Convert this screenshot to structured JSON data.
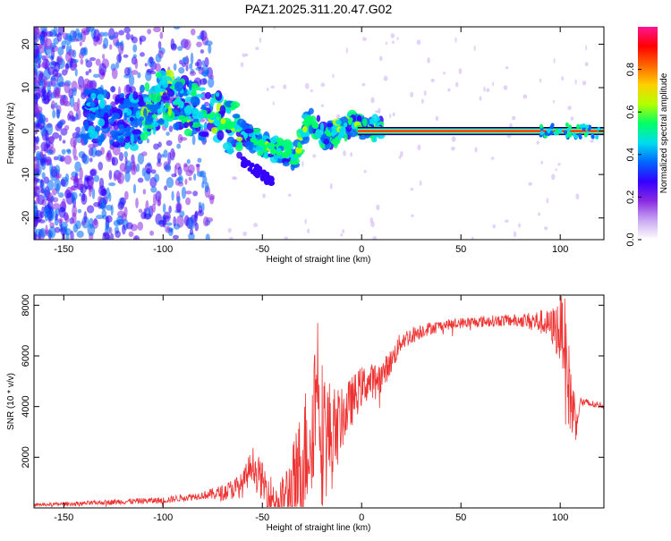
{
  "chart_data": [
    {
      "type": "heatmap",
      "title": "PAZ1.2025.311.20.47.G02",
      "xlabel": "Height of straight line (km)",
      "ylabel": "Frequency (Hz)",
      "xlim": [
        -165,
        122
      ],
      "ylim": [
        -25,
        24
      ],
      "xticks": [
        -150,
        -100,
        -50,
        0,
        50,
        100
      ],
      "yticks": [
        -20,
        -10,
        0,
        10,
        20
      ],
      "colorbar": {
        "label": "Normalized spectral amplitude",
        "range": [
          0,
          1
        ],
        "ticks": [
          "0.0",
          "0.2",
          "0.4",
          "0.6",
          "0.8"
        ],
        "colors": [
          "#ffffff",
          "#c9a8f2",
          "#8a2be2",
          "#3300ff",
          "#0066ff",
          "#00ddee",
          "#00ff66",
          "#b2ff00",
          "#ffd000",
          "#ff6600",
          "#ff0000",
          "#ff1493"
        ]
      },
      "ridge": {
        "x": [
          -165,
          -150,
          -130,
          -115,
          -100,
          -90,
          -80,
          -70,
          -60,
          -50,
          -40,
          -33,
          -28,
          -25,
          -20,
          -15,
          -10,
          -5,
          0,
          10,
          30,
          60,
          90,
          110,
          122
        ],
        "y": [
          3,
          5,
          3,
          2,
          8,
          6,
          4,
          2,
          0,
          -3,
          -5,
          -6,
          1,
          3,
          -1,
          -1,
          0,
          2,
          1,
          0,
          0,
          0,
          0,
          0.5,
          0
        ]
      }
    },
    {
      "type": "line",
      "xlabel": "Height of straight line (km)",
      "ylabel": "SNR (10 * v/v)",
      "xlim": [
        -165,
        122
      ],
      "ylim": [
        0,
        8400
      ],
      "xticks": [
        -150,
        -100,
        -50,
        0,
        50,
        100
      ],
      "yticks": [
        2000,
        4000,
        6000,
        8000
      ],
      "color": "#ee3333",
      "envelope": {
        "x": [
          -165,
          -140,
          -120,
          -100,
          -80,
          -70,
          -60,
          -55,
          -50,
          -45,
          -40,
          -35,
          -30,
          -25,
          -22,
          -20,
          -15,
          -10,
          -5,
          0,
          5,
          10,
          15,
          20,
          30,
          40,
          50,
          60,
          70,
          80,
          90,
          95,
          100,
          102,
          104,
          106,
          108,
          110,
          115,
          122
        ],
        "y": [
          120,
          180,
          250,
          300,
          500,
          600,
          900,
          1800,
          1000,
          400,
          350,
          700,
          1700,
          3300,
          5500,
          3000,
          2800,
          3500,
          4200,
          4800,
          5000,
          5200,
          5800,
          6600,
          7000,
          7200,
          7300,
          7350,
          7400,
          7400,
          7350,
          7200,
          7000,
          7000,
          5000,
          4000,
          3500,
          4200,
          4100,
          4050
        ]
      },
      "noise": {
        "x": [
          -165,
          -80,
          -60,
          -50,
          -40,
          -30,
          -20,
          -10,
          0,
          20,
          40,
          80,
          95,
          100,
          105,
          110,
          122
        ],
        "amp": [
          60,
          150,
          500,
          800,
          900,
          2500,
          3000,
          1200,
          800,
          400,
          200,
          250,
          600,
          1400,
          1800,
          200,
          120
        ]
      }
    }
  ]
}
